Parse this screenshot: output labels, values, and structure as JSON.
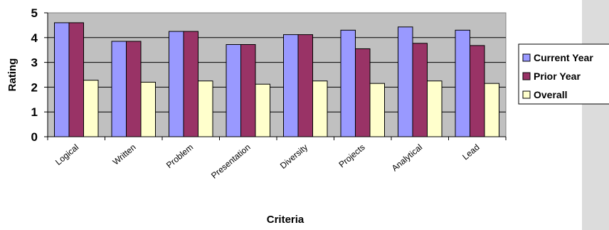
{
  "chart_data": {
    "type": "bar",
    "title": "",
    "xlabel": "Criteria",
    "ylabel": "Rating",
    "ylim": [
      0,
      5
    ],
    "yticks": [
      0,
      1,
      2,
      3,
      4,
      5
    ],
    "grid": true,
    "legend_position": "right",
    "categories": [
      "Logical",
      "Written",
      "Problem",
      "Presentation",
      "Diversity",
      "Projects",
      "Analytical",
      "Lead"
    ],
    "series": [
      {
        "name": "Current Year",
        "color": "#9999ff",
        "values": [
          4.6,
          3.85,
          4.25,
          3.72,
          4.12,
          4.3,
          4.43,
          4.3
        ]
      },
      {
        "name": "Prior Year",
        "color": "#993366",
        "values": [
          4.6,
          3.85,
          4.25,
          3.72,
          4.12,
          3.55,
          3.77,
          3.68
        ]
      },
      {
        "name": "Overall",
        "color": "#ffffcc",
        "values": [
          2.28,
          2.2,
          2.25,
          2.12,
          2.25,
          2.15,
          2.25,
          2.15
        ]
      }
    ]
  }
}
